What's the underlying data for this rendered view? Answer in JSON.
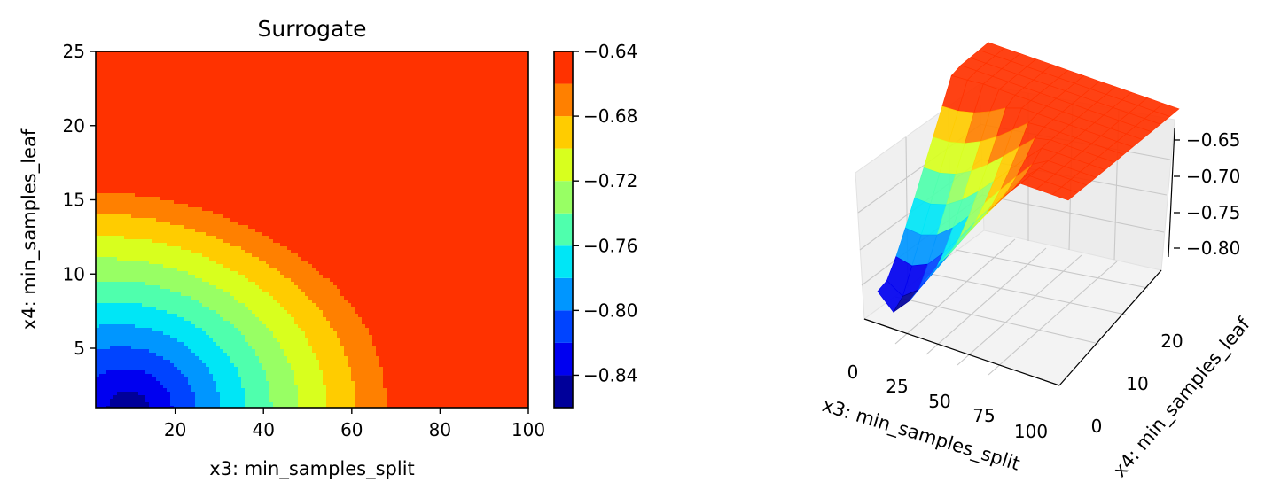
{
  "chart_data": [
    {
      "type": "contour",
      "title": "Surrogate",
      "xlabel": "x3: min_samples_split",
      "ylabel": "x4: min_samples_leaf",
      "xlim": [
        2,
        100
      ],
      "ylim": [
        1,
        25
      ],
      "xticks": [
        20,
        40,
        60,
        80,
        100
      ],
      "yticks": [
        5,
        10,
        15,
        20,
        25
      ],
      "levels": [
        -0.86,
        -0.84,
        -0.82,
        -0.8,
        -0.78,
        -0.76,
        -0.74,
        -0.72,
        -0.7,
        -0.68,
        -0.66,
        -0.64
      ],
      "level_colors": [
        "#00009a",
        "#0000f0",
        "#0044ff",
        "#0096ff",
        "#00e6f6",
        "#4fffad",
        "#98ff64",
        "#d8ff1e",
        "#ffcc00",
        "#ff8000",
        "#ff3200"
      ],
      "colorbar": {
        "ticks": [
          "−0.64",
          "−0.68",
          "−0.72",
          "−0.76",
          "−0.80",
          "−0.84"
        ],
        "tick_values": [
          -0.64,
          -0.68,
          -0.72,
          -0.76,
          -0.8,
          -0.84
        ],
        "range": [
          -0.86,
          -0.64
        ]
      },
      "minimum": {
        "x": 10,
        "y": 1
      },
      "maximum": {
        "x": 92,
        "y": 20
      }
    },
    {
      "type": "surface3d",
      "xlabel": "x3: min_samples_split",
      "ylabel": "x4: min_samples_leaf",
      "xticks": [
        "0",
        "25",
        "50",
        "75",
        "100"
      ],
      "yticks": [
        "0",
        "10",
        "20"
      ],
      "zticks": [
        "−0.65",
        "−0.70",
        "−0.75",
        "−0.80"
      ],
      "xlim": [
        0,
        100
      ],
      "ylim": [
        0,
        25
      ],
      "zlim": [
        -0.86,
        -0.64
      ]
    }
  ]
}
